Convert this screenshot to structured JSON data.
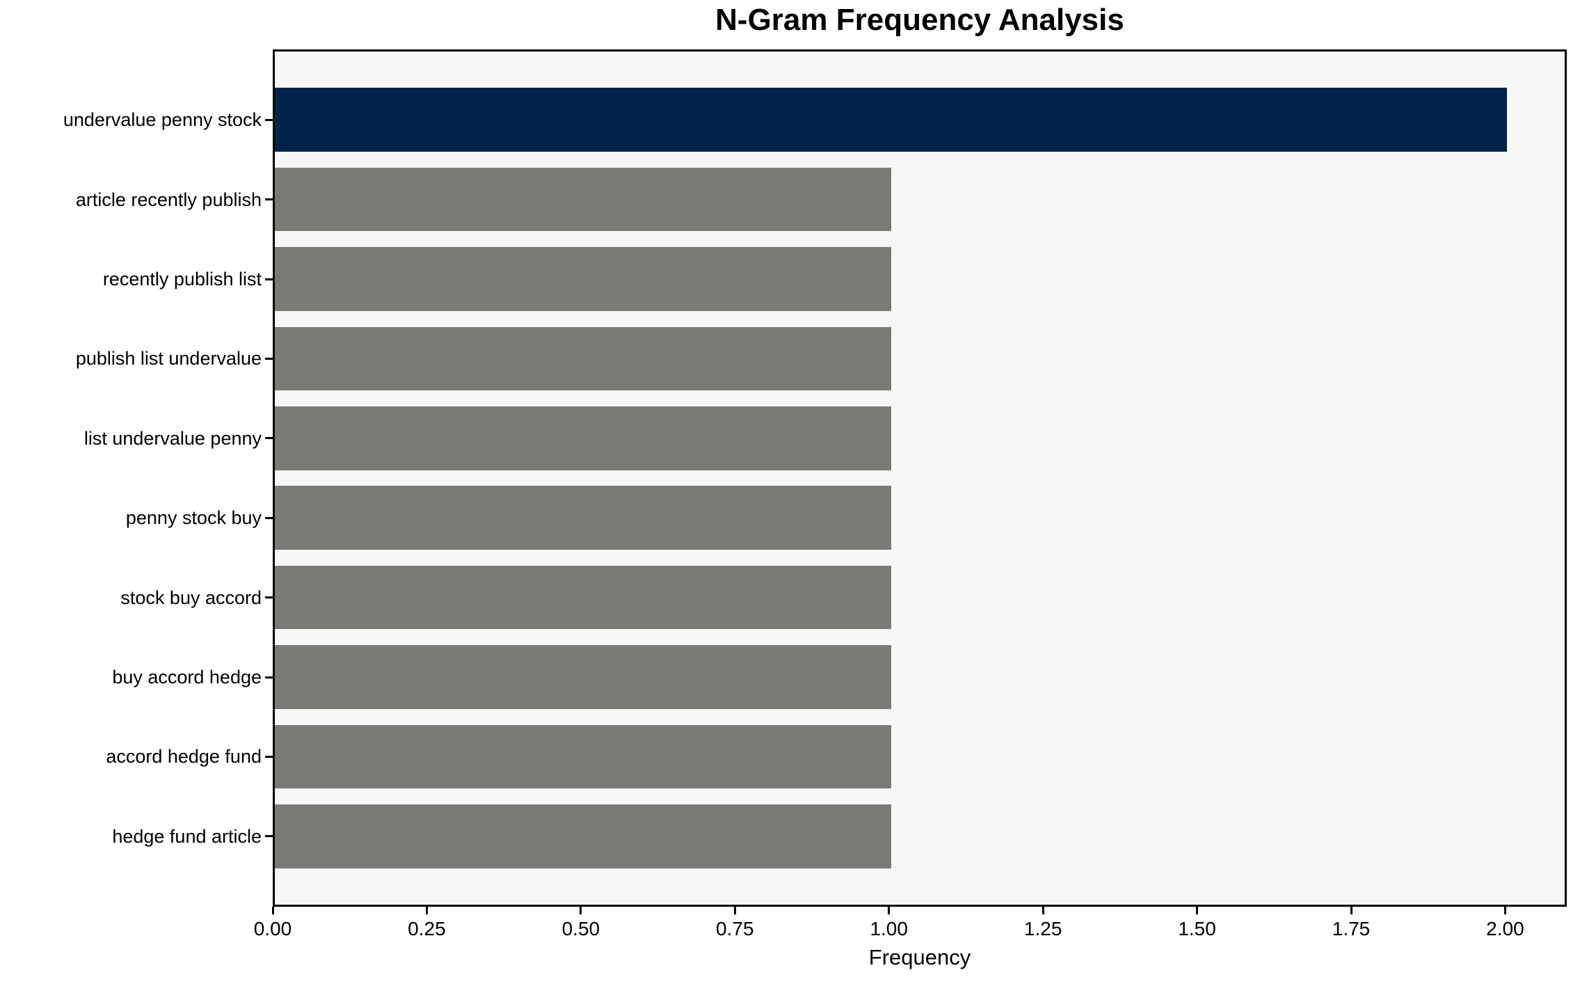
{
  "chart_data": {
    "type": "bar",
    "orientation": "horizontal",
    "title": "N-Gram Frequency Analysis",
    "xlabel": "Frequency",
    "ylabel": "",
    "categories": [
      "undervalue penny stock",
      "article recently publish",
      "recently publish list",
      "publish list undervalue",
      "list undervalue penny",
      "penny stock buy",
      "stock buy accord",
      "buy accord hedge",
      "accord hedge fund",
      "hedge fund article"
    ],
    "values": [
      2,
      1,
      1,
      1,
      1,
      1,
      1,
      1,
      1,
      1
    ],
    "bar_colors": [
      "#02234a",
      "#7b7a77",
      "#7b7a77",
      "#7b7a77",
      "#7b7a77",
      "#7b7a77",
      "#7b7a77",
      "#7b7a77",
      "#7b7a77",
      "#7b7a77"
    ],
    "xlim": [
      0,
      2.1
    ],
    "xtick_values": [
      0,
      0.25,
      0.5,
      0.75,
      1.0,
      1.25,
      1.5,
      1.75,
      2.0
    ],
    "xtick_labels": [
      "0.00",
      "0.25",
      "0.50",
      "0.75",
      "1.00",
      "1.25",
      "1.50",
      "1.75",
      "2.00"
    ],
    "grid": false,
    "legend": null,
    "colors": {
      "highlight_bar": "#02234a",
      "default_bar": "#7b7a77",
      "plot_background": "#f7f7f7",
      "figure_background": "#ffffff",
      "axis": "#000000",
      "text": "#000000"
    }
  }
}
